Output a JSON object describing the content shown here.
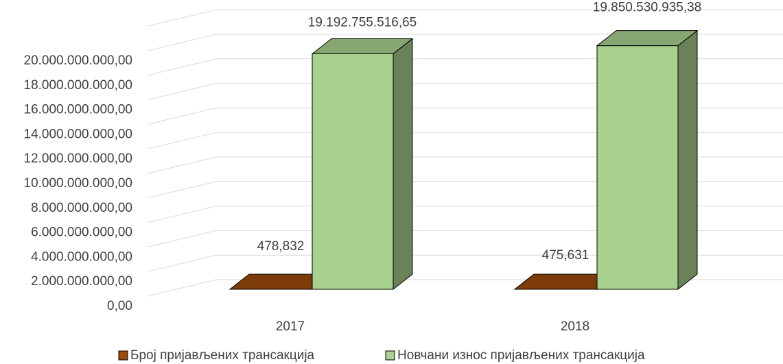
{
  "chart_data": {
    "type": "bar3d",
    "categories": [
      "2017",
      "2018"
    ],
    "series": [
      {
        "name": "Број пријављених трансакција",
        "color": "#9c4a0d",
        "values": [
          478832,
          475631
        ],
        "value_labels": [
          "478,832",
          "475,631"
        ]
      },
      {
        "name": "Новчани износ пријављених трансакција",
        "color": "#a9d18e",
        "values": [
          19192755516.65,
          19850530935.38
        ],
        "value_labels": [
          "19.192.755.516,65",
          "19.850.530.935,38"
        ]
      }
    ],
    "ylim": [
      0,
      22000000000
    ],
    "yticks": [
      {
        "value": 0,
        "label": "0,00"
      },
      {
        "value": 2000000000,
        "label": "2.000.000.000,00"
      },
      {
        "value": 4000000000,
        "label": "4.000.000.000,00"
      },
      {
        "value": 6000000000,
        "label": "6.000.000.000,00"
      },
      {
        "value": 8000000000,
        "label": "8.000.000.000,00"
      },
      {
        "value": 10000000000,
        "label": "10.000.000.000,00"
      },
      {
        "value": 12000000000,
        "label": "12.000.000.000,00"
      },
      {
        "value": 14000000000,
        "label": "14.000.000.000,00"
      },
      {
        "value": 16000000000,
        "label": "16.000.000.000,00"
      },
      {
        "value": 18000000000,
        "label": "18.000.000.000,00"
      },
      {
        "value": 20000000000,
        "label": "20.000.000.000,00"
      }
    ],
    "grid": true
  }
}
